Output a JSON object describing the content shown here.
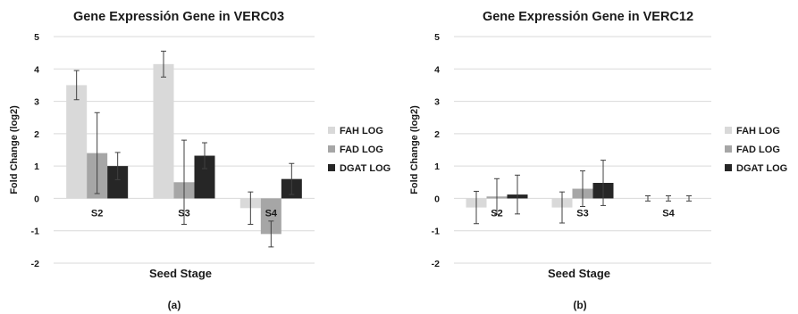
{
  "colors": {
    "series": [
      "#d9d9d9",
      "#a6a6a6",
      "#262626"
    ],
    "grid": "#d9d9d9",
    "errorbar": "#404040"
  },
  "chart_data": [
    {
      "type": "bar",
      "title": "Gene Expressión Gene in VERC03",
      "xlabel": "Seed Stage",
      "ylabel": "Fold Change (log2)",
      "ylim": [
        -2,
        5
      ],
      "yticks": [
        "5",
        "4",
        "3",
        "2",
        "1",
        "0",
        "-1",
        "-2"
      ],
      "grid": true,
      "legend_position": "right",
      "categories": [
        "S2",
        "S3",
        "S4"
      ],
      "series": [
        {
          "name": "FAH LOG",
          "values": [
            3.5,
            4.15,
            -0.3
          ],
          "error": [
            0.45,
            0.4,
            0.5
          ]
        },
        {
          "name": "FAD LOG",
          "values": [
            1.4,
            0.5,
            -1.1
          ],
          "error": [
            1.25,
            1.3,
            0.4
          ]
        },
        {
          "name": "DGAT LOG",
          "values": [
            1.0,
            1.32,
            0.6
          ],
          "error": [
            0.42,
            0.4,
            0.48
          ]
        }
      ],
      "caption": "(a)"
    },
    {
      "type": "bar",
      "title": "Gene Expressión Gene in VERC12",
      "xlabel": "Seed Stage",
      "ylabel": "Fold Change (log2)",
      "ylim": [
        -2,
        5
      ],
      "yticks": [
        "5",
        "4",
        "3",
        "2",
        "1",
        "0",
        "-1",
        "-2"
      ],
      "grid": true,
      "legend_position": "right",
      "categories": [
        "S2",
        "S3",
        "S4"
      ],
      "series": [
        {
          "name": "FAH LOG",
          "values": [
            -0.28,
            -0.28,
            0.0
          ],
          "error": [
            0.5,
            0.48,
            0.08
          ]
        },
        {
          "name": "FAD LOG",
          "values": [
            0.06,
            0.3,
            0.0
          ],
          "error": [
            0.55,
            0.55,
            0.08
          ]
        },
        {
          "name": "DGAT LOG",
          "values": [
            0.12,
            0.48,
            0.0
          ],
          "error": [
            0.6,
            0.7,
            0.08
          ]
        }
      ],
      "caption": "(b)"
    }
  ]
}
